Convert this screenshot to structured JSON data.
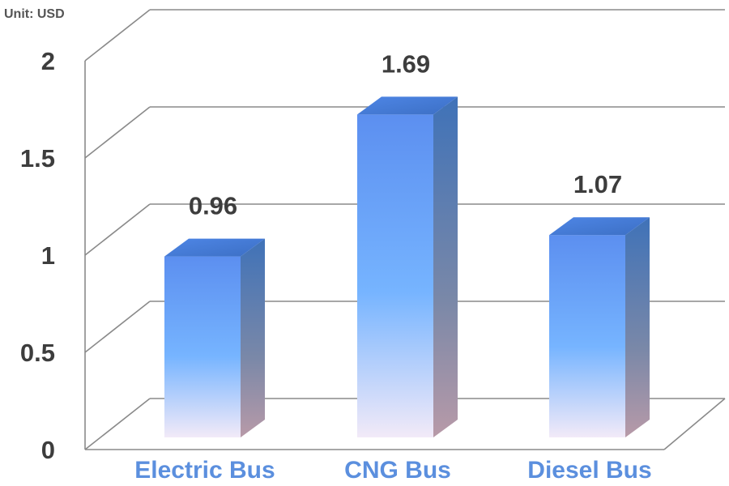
{
  "chart_data": {
    "type": "bar",
    "unit_label": "Unit: USD",
    "categories": [
      "Electric Bus",
      "CNG Bus",
      "Diesel Bus"
    ],
    "values": [
      0.96,
      1.69,
      1.07
    ],
    "value_labels": [
      "0.96",
      "1.69",
      "1.07"
    ],
    "ylim": [
      0,
      2
    ],
    "yticks": [
      "0",
      "0.5",
      "1",
      "1.5",
      "2"
    ],
    "grid": true,
    "three_d": true,
    "bar_color_top": "#5b8fee",
    "bar_color_bottom": "#ece6f8",
    "category_color": "#5b8fde"
  }
}
